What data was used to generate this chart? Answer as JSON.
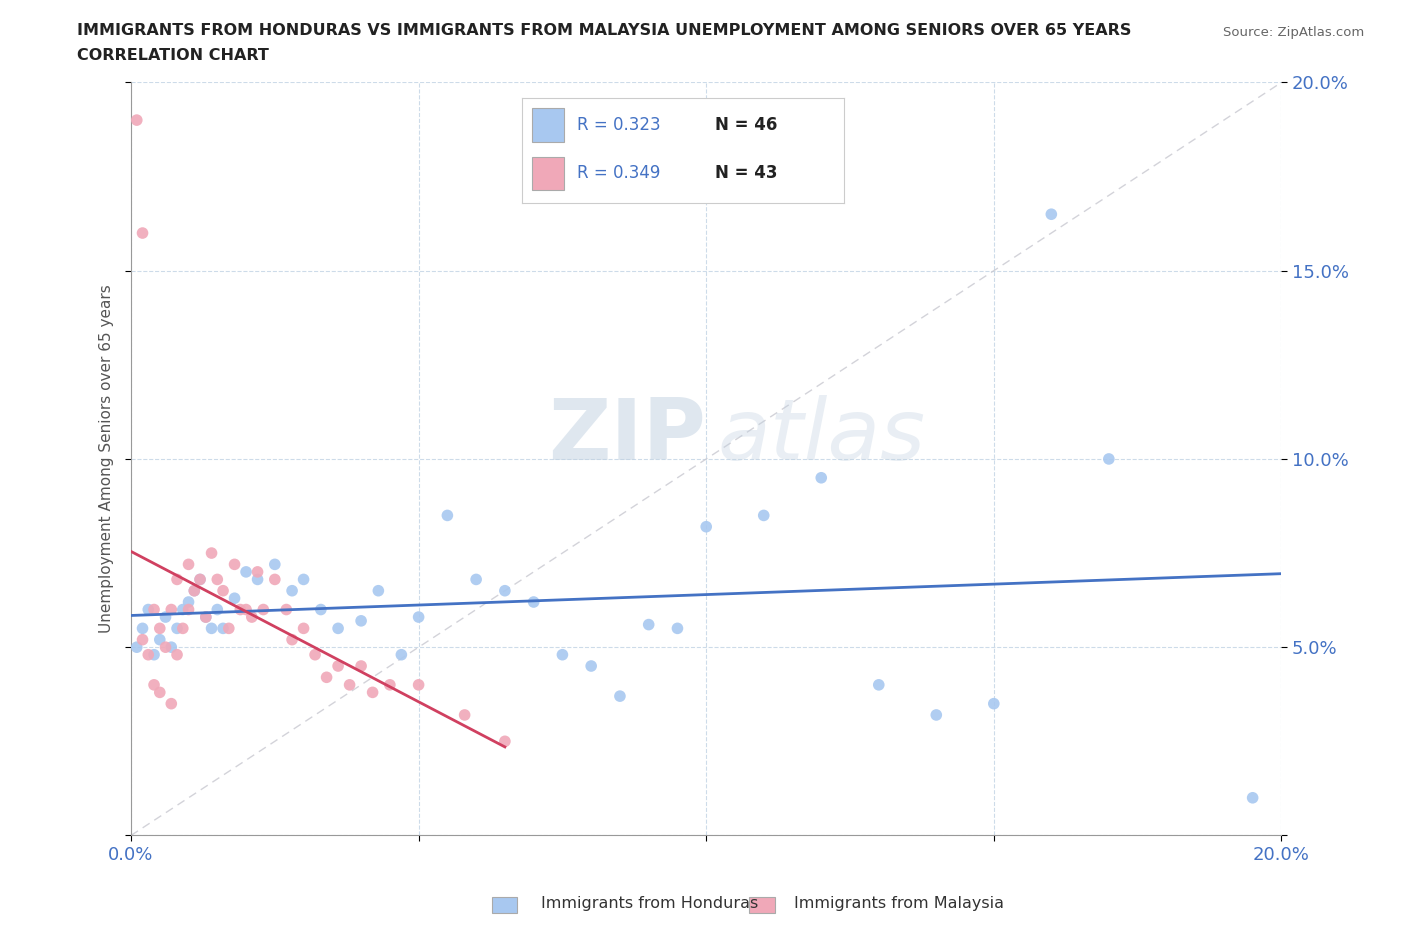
{
  "title_line1": "IMMIGRANTS FROM HONDURAS VS IMMIGRANTS FROM MALAYSIA UNEMPLOYMENT AMONG SENIORS OVER 65 YEARS",
  "title_line2": "CORRELATION CHART",
  "source": "Source: ZipAtlas.com",
  "ylabel": "Unemployment Among Seniors over 65 years",
  "xlim": [
    0.0,
    0.2
  ],
  "ylim": [
    0.0,
    0.2
  ],
  "color_honduras": "#a8c8f0",
  "color_malaysia": "#f0a8b8",
  "color_trend_honduras": "#4472c4",
  "color_trend_malaysia": "#d04060",
  "color_diagonal": "#c8c8d0",
  "watermark_zip": "ZIP",
  "watermark_atlas": "atlas",
  "honduras_R": 0.323,
  "honduras_N": 46,
  "malaysia_R": 0.349,
  "malaysia_N": 43,
  "honduras_x": [
    0.001,
    0.002,
    0.003,
    0.004,
    0.005,
    0.006,
    0.007,
    0.008,
    0.009,
    0.01,
    0.011,
    0.012,
    0.013,
    0.014,
    0.015,
    0.016,
    0.018,
    0.02,
    0.022,
    0.025,
    0.028,
    0.03,
    0.033,
    0.036,
    0.04,
    0.043,
    0.047,
    0.05,
    0.055,
    0.06,
    0.065,
    0.07,
    0.075,
    0.08,
    0.085,
    0.09,
    0.095,
    0.1,
    0.11,
    0.12,
    0.13,
    0.14,
    0.15,
    0.16,
    0.17,
    0.195
  ],
  "honduras_y": [
    0.05,
    0.055,
    0.06,
    0.048,
    0.052,
    0.058,
    0.05,
    0.055,
    0.06,
    0.062,
    0.065,
    0.068,
    0.058,
    0.055,
    0.06,
    0.055,
    0.063,
    0.07,
    0.068,
    0.072,
    0.065,
    0.068,
    0.06,
    0.055,
    0.057,
    0.065,
    0.048,
    0.058,
    0.085,
    0.068,
    0.065,
    0.062,
    0.048,
    0.045,
    0.037,
    0.056,
    0.055,
    0.082,
    0.085,
    0.095,
    0.04,
    0.032,
    0.035,
    0.165,
    0.1,
    0.01
  ],
  "malaysia_x": [
    0.001,
    0.002,
    0.002,
    0.003,
    0.004,
    0.004,
    0.005,
    0.005,
    0.006,
    0.007,
    0.007,
    0.008,
    0.008,
    0.009,
    0.01,
    0.01,
    0.011,
    0.012,
    0.013,
    0.014,
    0.015,
    0.016,
    0.017,
    0.018,
    0.019,
    0.02,
    0.021,
    0.022,
    0.023,
    0.025,
    0.027,
    0.028,
    0.03,
    0.032,
    0.034,
    0.036,
    0.038,
    0.04,
    0.042,
    0.045,
    0.05,
    0.058,
    0.065
  ],
  "malaysia_y": [
    0.19,
    0.16,
    0.052,
    0.048,
    0.06,
    0.04,
    0.055,
    0.038,
    0.05,
    0.06,
    0.035,
    0.048,
    0.068,
    0.055,
    0.06,
    0.072,
    0.065,
    0.068,
    0.058,
    0.075,
    0.068,
    0.065,
    0.055,
    0.072,
    0.06,
    0.06,
    0.058,
    0.07,
    0.06,
    0.068,
    0.06,
    0.052,
    0.055,
    0.048,
    0.042,
    0.045,
    0.04,
    0.045,
    0.038,
    0.04,
    0.04,
    0.032,
    0.025
  ]
}
